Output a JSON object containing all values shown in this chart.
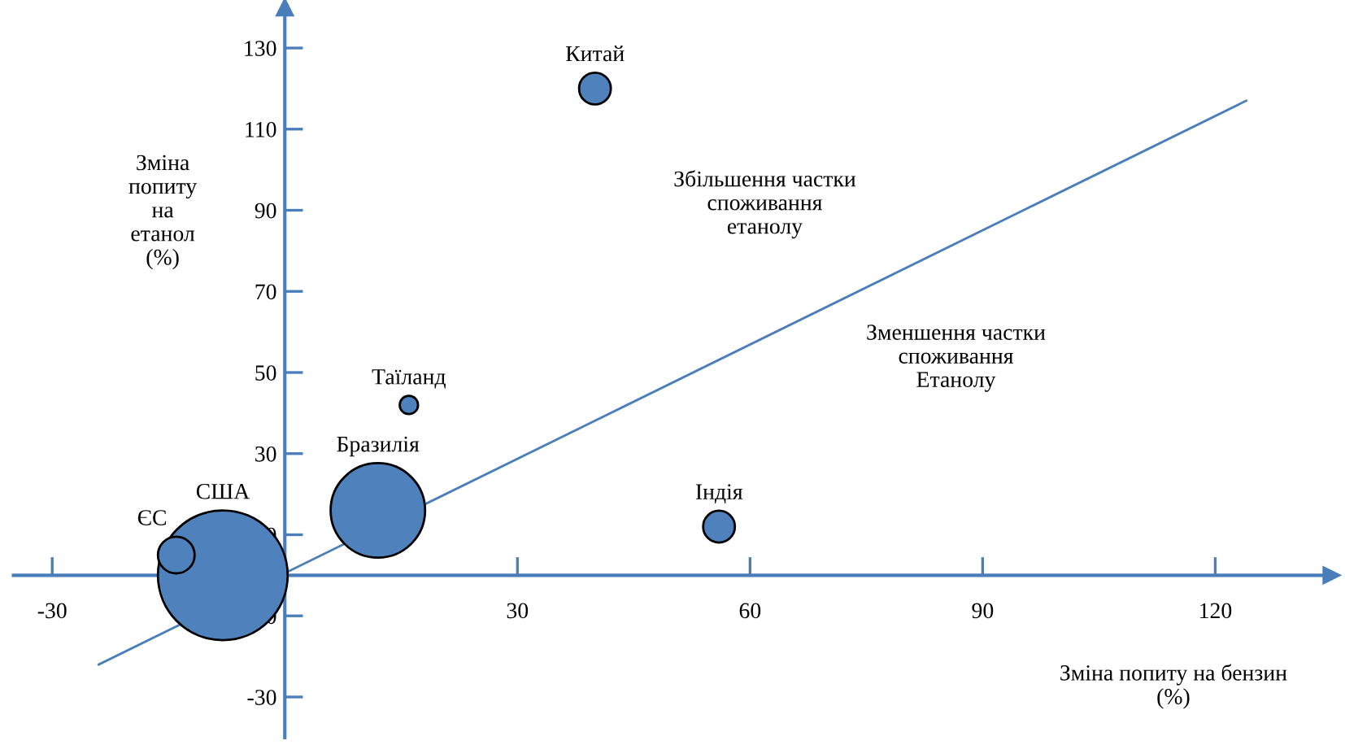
{
  "chart_data": {
    "type": "bubble",
    "xlabel": "Зміна попиту на бензин (%)",
    "ylabel": "Зміна попиту на етанол (%)",
    "xlim": [
      -35,
      135
    ],
    "ylim": [
      -40,
      140
    ],
    "xticks": [
      -30,
      30,
      60,
      90,
      120
    ],
    "yticks": [
      -30,
      -10,
      10,
      30,
      50,
      70,
      90,
      110,
      130
    ],
    "grid": false,
    "marker": "circle",
    "series": [
      {
        "name": "США",
        "color": "#4f81bd",
        "x": [
          -8
        ],
        "values": [
          0
        ],
        "sizes": [
          1
        ]
      },
      {
        "name": "ЄС",
        "color": "#4f81bd",
        "x": [
          -14
        ],
        "values": [
          5
        ],
        "sizes": [
          0.08
        ]
      },
      {
        "name": "Бразилія",
        "color": "#4f81bd",
        "x": [
          12
        ],
        "values": [
          16
        ],
        "sizes": [
          0.53
        ]
      },
      {
        "name": "Таїланд",
        "color": "#4f81bd",
        "x": [
          16
        ],
        "values": [
          42
        ],
        "sizes": [
          0.02
        ]
      },
      {
        "name": "Китай",
        "color": "#4f81bd",
        "x": [
          40
        ],
        "values": [
          120
        ],
        "sizes": [
          0.06
        ]
      },
      {
        "name": "Індія",
        "color": "#4f81bd",
        "x": [
          56
        ],
        "values": [
          12
        ],
        "sizes": [
          0.06
        ]
      },
      {
        "type": "line",
        "color": "#4a7ebb",
        "x": [
          -24,
          124
        ],
        "values": [
          -22,
          117
        ],
        "marker": "none"
      }
    ],
    "annotations": [
      "Збільшення частки споживання етанолу",
      "Зменшення частки споживання Етанолу"
    ]
  }
}
